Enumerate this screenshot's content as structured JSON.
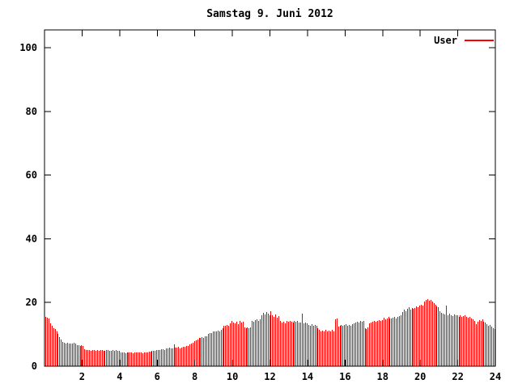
{
  "window": {
    "title": "Samstag 9. Juni 2012"
  },
  "colors": {
    "bar": "#ff0000",
    "axis": "#000000",
    "background": "#ffffff"
  },
  "legend": {
    "entries": [
      {
        "label": "User",
        "color": "#ff0000"
      }
    ],
    "position": "top-right"
  },
  "chart_data": {
    "type": "bar",
    "title": "Samstag 9. Juni 2012",
    "xlabel": "",
    "ylabel": "",
    "xlim": [
      0,
      24
    ],
    "ylim": [
      0,
      100
    ],
    "x_tick_labels": [
      "2",
      "4",
      "6",
      "8",
      "10",
      "12",
      "14",
      "16",
      "18",
      "20",
      "22",
      "24"
    ],
    "x_ticks": [
      2,
      4,
      6,
      8,
      10,
      12,
      14,
      16,
      18,
      20,
      22,
      24
    ],
    "y_tick_labels": [
      "0",
      "20",
      "40",
      "60",
      "80",
      "100"
    ],
    "y_ticks": [
      0,
      20,
      40,
      60,
      80,
      100
    ],
    "grid": false,
    "legend_position": "top-right",
    "interval_minutes": 5,
    "series": [
      {
        "name": "User",
        "color": "#ff0000",
        "values": [
          15.5,
          15.2,
          15.0,
          13.4,
          12.7,
          12.0,
          11.8,
          10.9,
          10.1,
          9.2,
          8.4,
          7.5,
          7.3,
          7.2,
          7.4,
          7.1,
          7.2,
          7.0,
          7.3,
          7.1,
          6.7,
          6.5,
          6.4,
          6.6,
          6.3,
          5.4,
          5.1,
          5.0,
          5.2,
          4.9,
          5.0,
          5.1,
          4.8,
          5.0,
          4.9,
          5.1,
          5.0,
          4.8,
          4.9,
          5.0,
          5.1,
          4.9,
          4.8,
          5.0,
          4.9,
          5.0,
          4.8,
          4.9,
          4.4,
          4.2,
          4.3,
          4.1,
          4.3,
          4.2,
          4.4,
          4.3,
          4.1,
          4.2,
          4.3,
          4.4,
          4.2,
          4.3,
          4.1,
          4.2,
          4.3,
          4.2,
          4.5,
          4.6,
          4.8,
          4.7,
          4.9,
          5.0,
          5.2,
          5.1,
          5.3,
          5.4,
          5.2,
          5.5,
          5.6,
          5.8,
          5.5,
          5.7,
          6.8,
          5.9,
          5.8,
          6.0,
          5.7,
          5.9,
          6.1,
          6.2,
          6.4,
          6.3,
          6.8,
          7.0,
          7.4,
          7.8,
          8.2,
          8.5,
          8.8,
          9.0,
          9.2,
          8.9,
          9.3,
          9.5,
          10.2,
          10.5,
          10.4,
          10.8,
          11.0,
          10.9,
          11.2,
          11.0,
          11.3,
          12.0,
          12.6,
          12.8,
          13.0,
          12.7,
          13.5,
          14.3,
          13.8,
          13.5,
          14.0,
          13.2,
          14.3,
          13.6,
          13.9,
          12.2,
          11.9,
          12.1,
          12.0,
          12.3,
          14.3,
          14.0,
          14.5,
          14.8,
          14.2,
          14.6,
          16.0,
          16.8,
          16.2,
          17.0,
          16.5,
          16.1,
          17.3,
          16.0,
          15.5,
          16.2,
          15.2,
          15.8,
          14.3,
          13.8,
          14.0,
          13.5,
          14.2,
          13.9,
          14.1,
          14.0,
          13.7,
          14.3,
          13.9,
          14.1,
          13.8,
          13.6,
          16.5,
          13.4,
          13.7,
          13.5,
          13.0,
          12.8,
          13.2,
          12.6,
          13.0,
          12.7,
          12.0,
          11.5,
          10.8,
          11.2,
          10.9,
          11.4,
          11.0,
          11.2,
          10.9,
          11.3,
          11.0,
          14.8,
          15.0,
          12.5,
          12.8,
          13.0,
          12.6,
          12.9,
          13.1,
          12.7,
          13.0,
          12.8,
          13.2,
          13.5,
          13.8,
          14.0,
          13.6,
          14.3,
          13.9,
          14.1,
          12.0,
          11.8,
          12.2,
          13.5,
          13.8,
          14.0,
          14.3,
          13.9,
          14.2,
          14.5,
          14.1,
          14.4,
          15.2,
          14.8,
          15.0,
          15.5,
          15.1,
          14.9,
          15.3,
          15.6,
          15.0,
          15.4,
          15.8,
          16.0,
          17.0,
          17.7,
          17.3,
          18.0,
          18.5,
          17.8,
          18.2,
          17.9,
          18.4,
          18.8,
          18.5,
          19.0,
          19.4,
          19.0,
          20.2,
          20.8,
          21.0,
          20.5,
          20.9,
          20.3,
          19.7,
          19.2,
          18.8,
          18.5,
          17.3,
          16.8,
          16.5,
          16.2,
          19.0,
          16.0,
          16.4,
          16.0,
          15.8,
          16.2,
          15.9,
          16.1,
          15.6,
          15.9,
          15.4,
          15.7,
          16.0,
          15.5,
          15.2,
          15.5,
          15.0,
          14.6,
          14.3,
          13.1,
          14.0,
          14.5,
          14.2,
          14.8,
          14.0,
          13.6,
          13.2,
          12.8,
          13.0,
          12.4,
          12.0,
          11.8
        ]
      }
    ]
  }
}
